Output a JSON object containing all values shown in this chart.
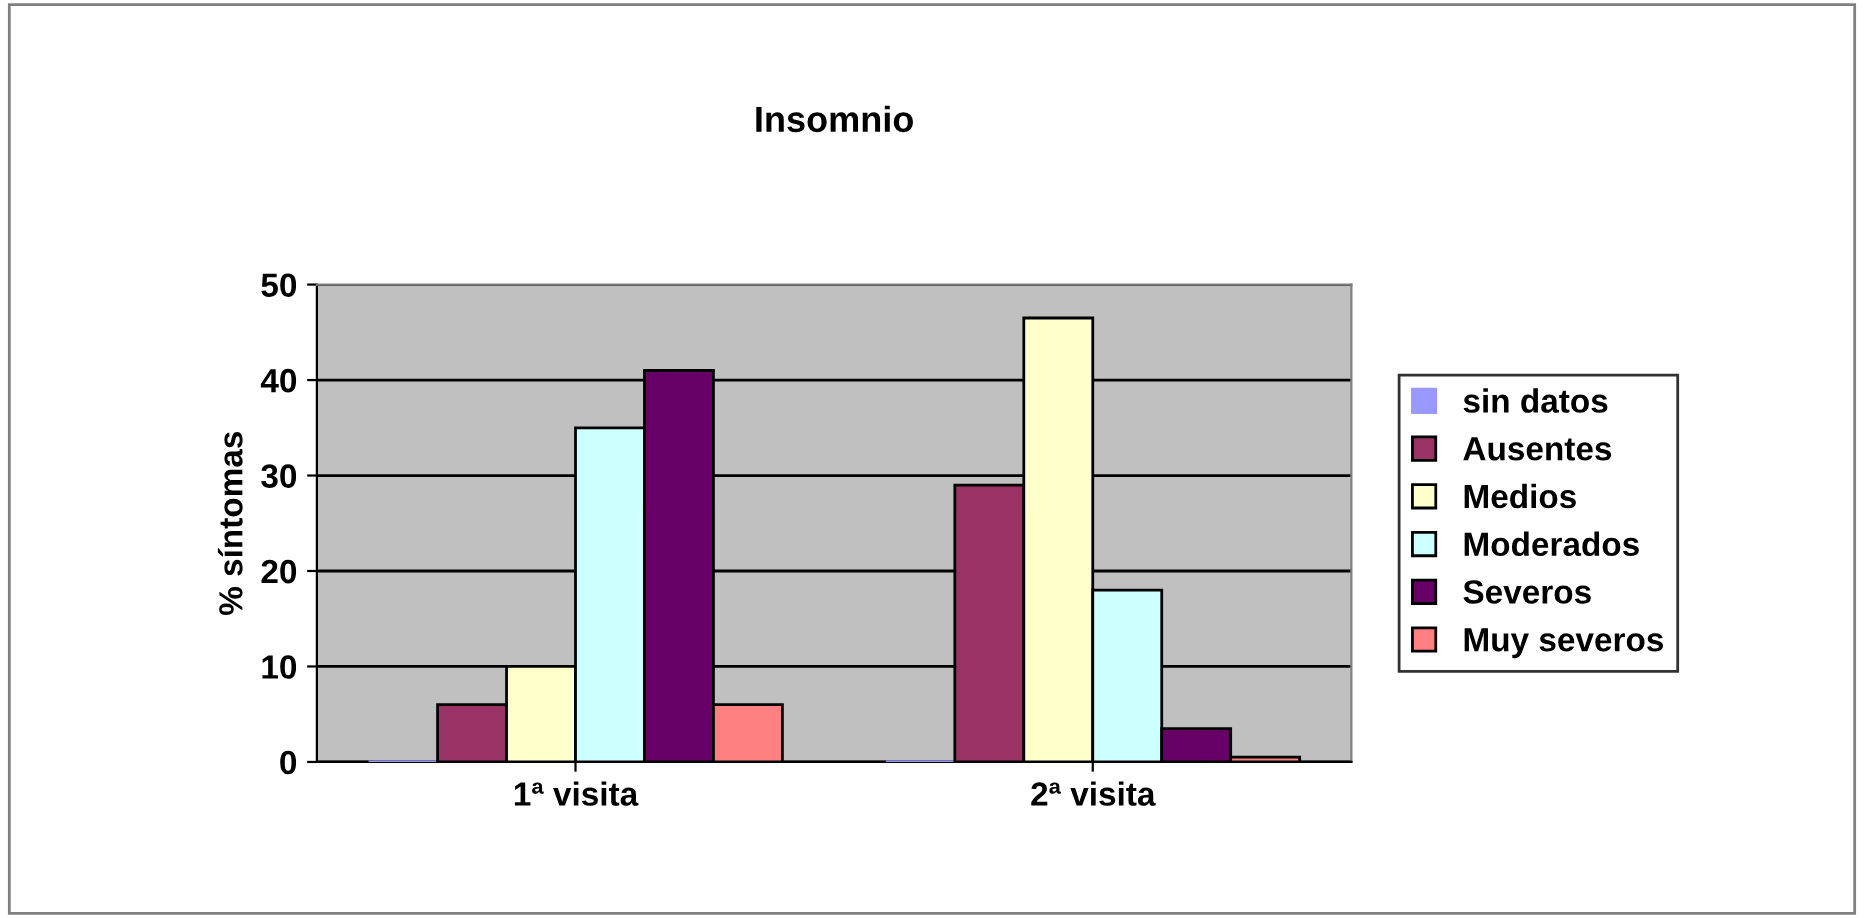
{
  "chart_data": {
    "type": "bar",
    "title": "Insomnio",
    "ylabel": "% síntomas",
    "categories": [
      "1ª visita",
      "2ª visita"
    ],
    "series": [
      {
        "name": "sin datos",
        "color": "#9999ff",
        "values": [
          0,
          0
        ]
      },
      {
        "name": "Ausentes",
        "color": "#993366",
        "values": [
          6,
          29
        ]
      },
      {
        "name": "Medios",
        "color": "#ffffcc",
        "values": [
          10,
          46.5
        ]
      },
      {
        "name": "Moderados",
        "color": "#ccffff",
        "values": [
          35,
          18
        ]
      },
      {
        "name": "Severos",
        "color": "#660066",
        "values": [
          41,
          3.5
        ]
      },
      {
        "name": "Muy severos",
        "color": "#ff8080",
        "values": [
          6,
          0.5
        ]
      }
    ],
    "ylim": [
      0,
      50
    ],
    "yticks": [
      0,
      10,
      20,
      30,
      40,
      50
    ],
    "grid": "y",
    "legend": "right"
  }
}
